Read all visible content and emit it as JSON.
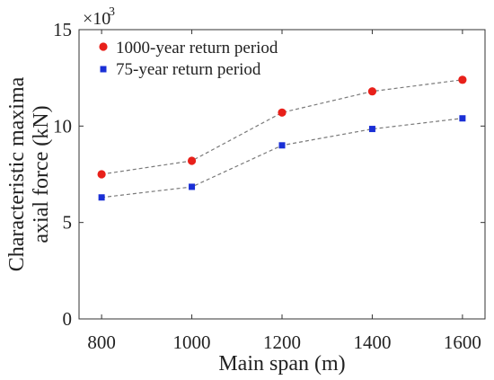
{
  "chart_data": {
    "type": "line",
    "xlabel": "Main span (m)",
    "ylabel_lines": [
      "Characteristic maxima",
      "axial force (kN)"
    ],
    "y_multiplier_base": "×10",
    "y_multiplier_exp": "3",
    "x": [
      800,
      1000,
      1200,
      1400,
      1600
    ],
    "xlim": [
      750,
      1650
    ],
    "ylim": [
      0,
      15
    ],
    "x_ticks": [
      800,
      1000,
      1200,
      1400,
      1600
    ],
    "y_ticks": [
      0,
      5,
      10,
      15
    ],
    "y_scale_factor": 1000,
    "grid": false,
    "legend_position": "top-left",
    "series": [
      {
        "name": "1000-year return period",
        "marker": "circle",
        "color": "#e8201a",
        "values": [
          7.5,
          8.2,
          10.7,
          11.8,
          12.4
        ]
      },
      {
        "name": "75-year return period",
        "marker": "square",
        "color": "#1a2fd6",
        "values": [
          6.3,
          6.85,
          9.0,
          9.85,
          10.4
        ]
      }
    ],
    "connector_color": "#7a7a7a"
  }
}
